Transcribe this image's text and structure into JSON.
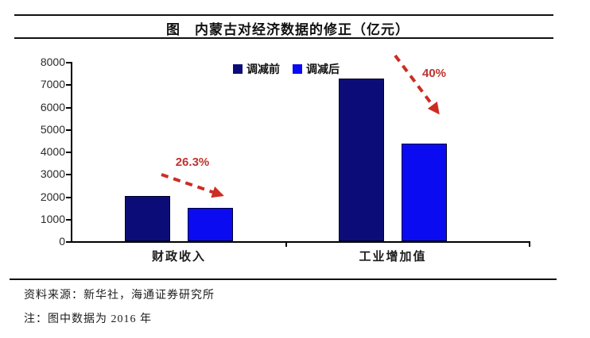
{
  "figure": {
    "title": "图　内蒙古对经济数据的修正（亿元）"
  },
  "footer": {
    "source": "资料来源：新华社，海通证券研究所",
    "note": "注：图中数据为 2016 年"
  },
  "colors": {
    "series_before": "#0c0c78",
    "series_after": "#0b0bf2",
    "arrow_red": "#cc2d24",
    "annotation_red": "#bf3430",
    "axis": "#000000"
  },
  "chart_data": {
    "type": "bar",
    "title": "图　内蒙古对经济数据的修正（亿元）",
    "categories": [
      "财政收入",
      "工业增加值"
    ],
    "series": [
      {
        "name": "调减前",
        "values": [
          2016,
          7250
        ],
        "color": "#0c0c78"
      },
      {
        "name": "调减后",
        "values": [
          1486,
          4350
        ],
        "color": "#0b0bf2"
      }
    ],
    "annotations": [
      {
        "category": "财政收入",
        "label": "26.3%"
      },
      {
        "category": "工业增加值",
        "label": "40%"
      }
    ],
    "xlabel": "",
    "ylabel": "",
    "ylim": [
      0,
      8000
    ],
    "yticks": [
      0,
      1000,
      2000,
      3000,
      4000,
      5000,
      6000,
      7000,
      8000
    ],
    "grid": false,
    "legend_position": "top-center",
    "unit": "亿元"
  }
}
